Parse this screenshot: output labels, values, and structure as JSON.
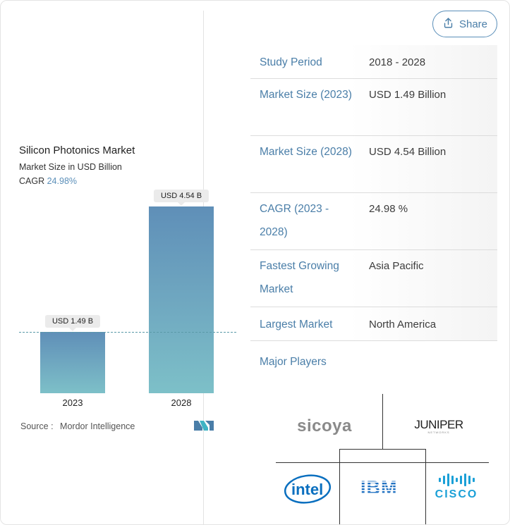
{
  "share": {
    "label": "Share"
  },
  "chart": {
    "title": "Silicon Photonics Market",
    "subtitle": "Market Size in USD Billion",
    "cagr_label": "CAGR",
    "cagr_value": "24.98%",
    "source_label": "Source :",
    "source_value": "Mordor Intelligence",
    "bar_labels": [
      "USD 1.49 B",
      "USD 4.54 B"
    ]
  },
  "chart_data": {
    "type": "bar",
    "title": "Silicon Photonics Market",
    "subtitle": "Market Size in USD Billion",
    "categories": [
      "2023",
      "2028"
    ],
    "values": [
      1.49,
      4.54
    ],
    "data_labels": [
      "USD 1.49 B",
      "USD 4.54 B"
    ],
    "ylabel": "Market Size in USD Billion",
    "reference_line": 1.49,
    "ylim": [
      0,
      4.54
    ],
    "colors": {
      "bar_top": "#5f8fb8",
      "bar_bottom": "#7dc0c8"
    }
  },
  "table": {
    "rows": [
      {
        "key": "Study Period",
        "value": "2018 - 2028"
      },
      {
        "key": "Market Size (2023)",
        "value": "USD 1.49 Billion"
      },
      {
        "key": "Market Size (2028)",
        "value": "USD 4.54 Billion"
      },
      {
        "key": "CAGR (2023 - 2028)",
        "value": "24.98 %"
      },
      {
        "key": "Fastest Growing Market",
        "value": "Asia Pacific"
      },
      {
        "key": "Largest Market",
        "value": "North America"
      },
      {
        "key": "Major Players",
        "value": ""
      }
    ]
  },
  "players": {
    "logos": [
      "sicoya",
      "JUNIPER",
      "intel",
      "IBM",
      "CISCO"
    ],
    "juniper_sub": "NETWORKS"
  },
  "colors": {
    "accent": "#4a7ea8",
    "cagr": "#5b8fb9",
    "cisco": "#1ba0d7",
    "intel": "#0a6fbf",
    "ibm": "#1f70c1"
  }
}
